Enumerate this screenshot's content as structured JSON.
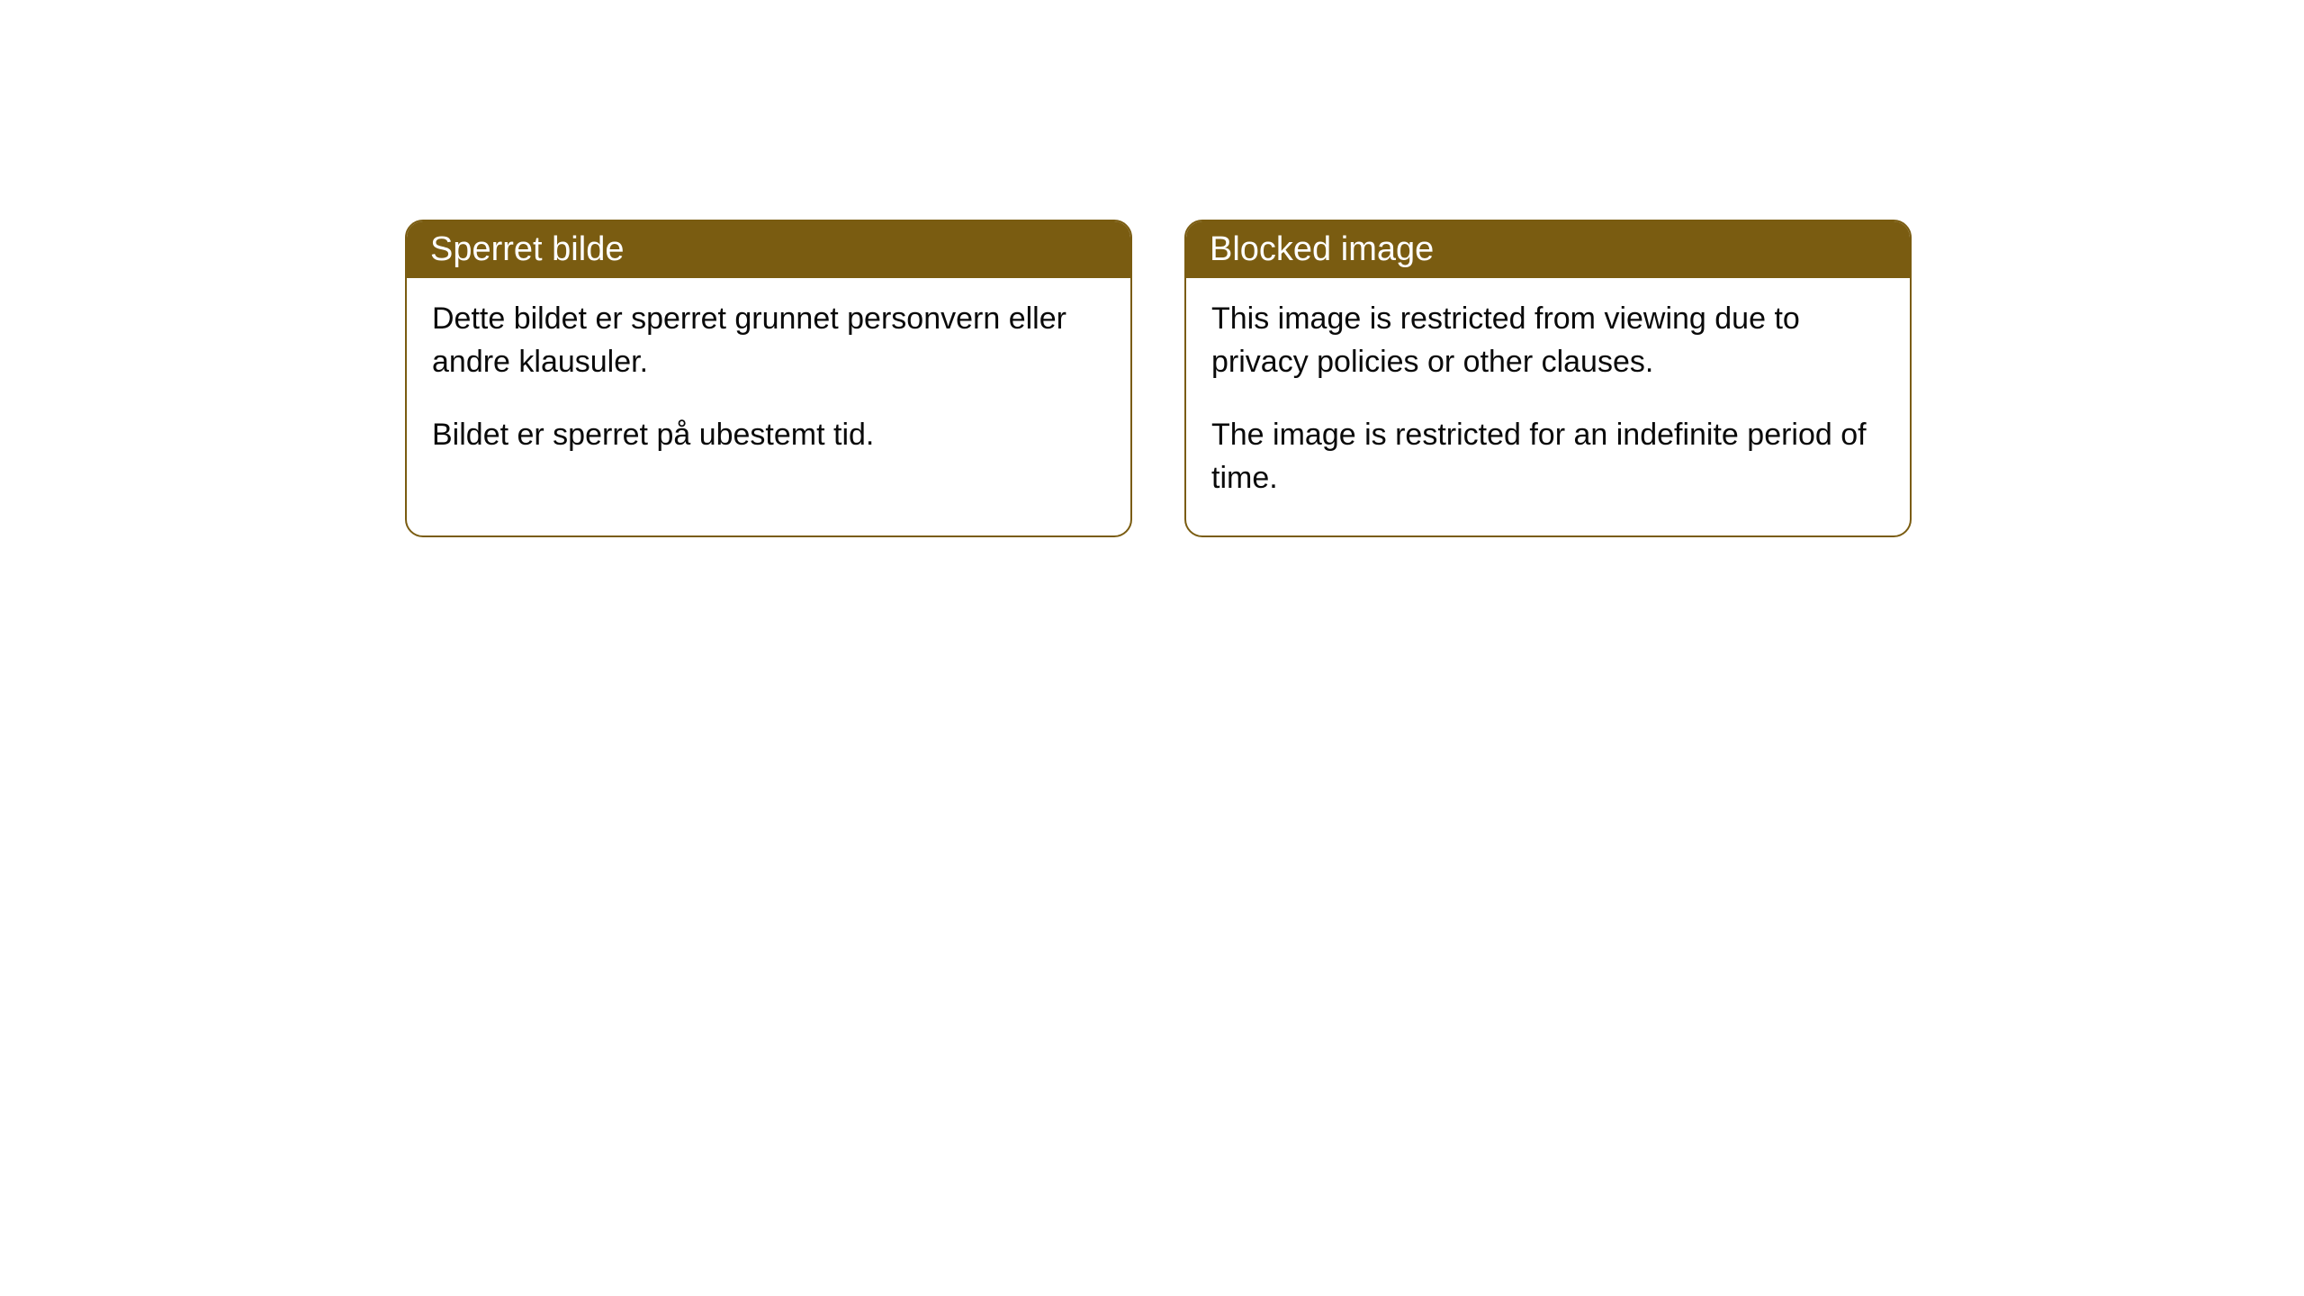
{
  "cards": [
    {
      "title": "Sperret bilde",
      "paragraph1": "Dette bildet er sperret grunnet personvern eller andre klausuler.",
      "paragraph2": "Bildet er sperret på ubestemt tid."
    },
    {
      "title": "Blocked image",
      "paragraph1": "This image is restricted from viewing due to privacy policies or other clauses.",
      "paragraph2": "The image is restricted for an indefinite period of time."
    }
  ],
  "styling": {
    "header_bg_color": "#7a5c11",
    "header_text_color": "#ffffff",
    "body_text_color": "#0a0a0a",
    "border_color": "#7a5c11",
    "background_color": "#ffffff",
    "border_radius": 20,
    "header_fontsize": 38,
    "body_fontsize": 34
  }
}
